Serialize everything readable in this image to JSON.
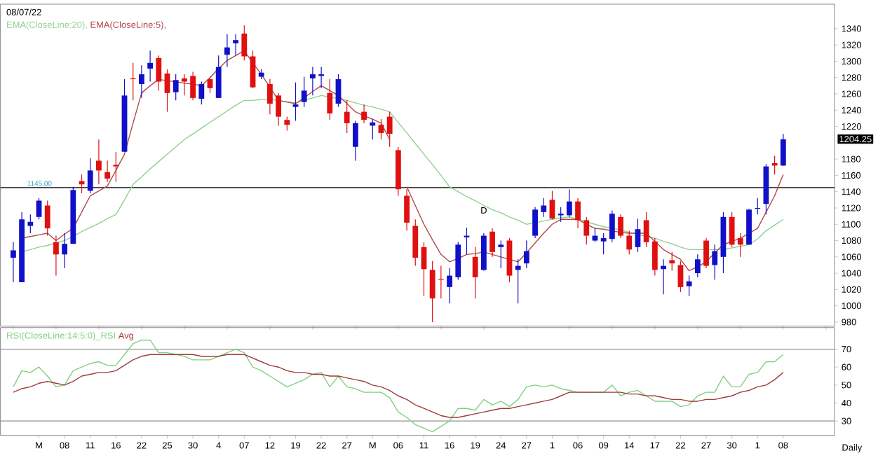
{
  "chart_data": [
    {
      "type": "candlestick",
      "title": "08/07/22",
      "categories": [
        null,
        null,
        null,
        null,
        null,
        null,
        null,
        null,
        null,
        null,
        null,
        null,
        null,
        null,
        null,
        null,
        null,
        null,
        null,
        null,
        null,
        null,
        null,
        null,
        null,
        null,
        null,
        null,
        null,
        null,
        null,
        null,
        null,
        null,
        null,
        null,
        null,
        null,
        null,
        null,
        null,
        null,
        null,
        null,
        null,
        null,
        null,
        null,
        null,
        null,
        null,
        null,
        null,
        null,
        null,
        null,
        null,
        null,
        null,
        null,
        null,
        null,
        null,
        null,
        null,
        null,
        null,
        null,
        null,
        null,
        null,
        null,
        null,
        null,
        null,
        null,
        null,
        null,
        null,
        null,
        null,
        null,
        null,
        null,
        null,
        null,
        null,
        null,
        null,
        null,
        null
      ],
      "ohlc": [
        [
          1059,
          1078,
          1029,
          1068
        ],
        [
          1029,
          1115,
          1029,
          1106
        ],
        [
          1098,
          1112,
          1089,
          1103
        ],
        [
          1109,
          1132,
          1106,
          1129
        ],
        [
          1123,
          1129,
          1086,
          1095
        ],
        [
          1078,
          1086,
          1037,
          1063
        ],
        [
          1063,
          1089,
          1046,
          1076
        ],
        [
          1076,
          1146,
          1076,
          1142
        ],
        [
          1153,
          1161,
          1138,
          1149
        ],
        [
          1141,
          1181,
          1138,
          1166
        ],
        [
          1178,
          1204,
          1149,
          1166
        ],
        [
          1164,
          1178,
          1152,
          1156
        ],
        [
          1173,
          1189,
          1152,
          1171
        ],
        [
          1189,
          1278,
          1189,
          1258
        ],
        [
          1279,
          1298,
          1252,
          1278
        ],
        [
          1272,
          1295,
          1255,
          1284
        ],
        [
          1291,
          1313,
          1275,
          1298
        ],
        [
          1304,
          1307,
          1264,
          1275
        ],
        [
          1285,
          1290,
          1238,
          1261
        ],
        [
          1262,
          1284,
          1252,
          1277
        ],
        [
          1279,
          1284,
          1258,
          1275
        ],
        [
          1282,
          1287,
          1252,
          1255
        ],
        [
          1254,
          1275,
          1247,
          1272
        ],
        [
          1278,
          1281,
          1261,
          1267
        ],
        [
          1255,
          1307,
          1255,
          1293
        ],
        [
          1308,
          1333,
          1293,
          1317
        ],
        [
          1322,
          1333,
          1307,
          1326
        ],
        [
          1334,
          1344,
          1301,
          1306
        ],
        [
          1306,
          1313,
          1267,
          1268
        ],
        [
          1281,
          1290,
          1278,
          1286
        ],
        [
          1272,
          1278,
          1235,
          1248
        ],
        [
          1258,
          1261,
          1221,
          1232
        ],
        [
          1228,
          1232,
          1215,
          1222
        ],
        [
          1244,
          1274,
          1227,
          1247
        ],
        [
          1250,
          1281,
          1244,
          1264
        ],
        [
          1279,
          1293,
          1258,
          1284
        ],
        [
          1282,
          1293,
          1267,
          1284
        ],
        [
          1261,
          1278,
          1228,
          1236
        ],
        [
          1248,
          1284,
          1244,
          1278
        ],
        [
          1238,
          1252,
          1212,
          1224
        ],
        [
          1195,
          1227,
          1178,
          1224
        ],
        [
          1238,
          1247,
          1224,
          1228
        ],
        [
          1221,
          1229,
          1204,
          1225
        ],
        [
          1222,
          1229,
          1204,
          1212
        ],
        [
          1232,
          1238,
          1195,
          1211
        ],
        [
          1191,
          1195,
          1135,
          1143
        ],
        [
          1135,
          1143,
          1092,
          1102
        ],
        [
          1098,
          1106,
          1049,
          1059
        ],
        [
          1072,
          1078,
          1012,
          1045
        ],
        [
          1044,
          1055,
          980,
          1009
        ],
        [
          1033,
          1049,
          1009,
          1032
        ],
        [
          1023,
          1046,
          1003,
          1037
        ],
        [
          1035,
          1078,
          1032,
          1075
        ],
        [
          1084,
          1096,
          1063,
          1086
        ],
        [
          1060,
          1072,
          1009,
          1035
        ],
        [
          1044,
          1089,
          1043,
          1086
        ],
        [
          1091,
          1095,
          1060,
          1066
        ],
        [
          1072,
          1080,
          1046,
          1075
        ],
        [
          1080,
          1083,
          1029,
          1037
        ],
        [
          1044,
          1057,
          1003,
          1049
        ],
        [
          1052,
          1080,
          1046,
          1067
        ],
        [
          1086,
          1121,
          1083,
          1118
        ],
        [
          1115,
          1132,
          1109,
          1123
        ],
        [
          1130,
          1141,
          1106,
          1107
        ],
        [
          1111,
          1121,
          1103,
          1113
        ],
        [
          1111,
          1143,
          1109,
          1128
        ],
        [
          1128,
          1132,
          1095,
          1105
        ],
        [
          1105,
          1109,
          1075,
          1086
        ],
        [
          1080,
          1096,
          1078,
          1086
        ],
        [
          1079,
          1089,
          1063,
          1083
        ],
        [
          1082,
          1117,
          1078,
          1113
        ],
        [
          1109,
          1112,
          1083,
          1086
        ],
        [
          1086,
          1092,
          1063,
          1069
        ],
        [
          1072,
          1107,
          1066,
          1094
        ],
        [
          1105,
          1115,
          1072,
          1078
        ],
        [
          1079,
          1083,
          1037,
          1044
        ],
        [
          1045,
          1057,
          1014,
          1049
        ],
        [
          1056,
          1066,
          1043,
          1052
        ],
        [
          1050,
          1055,
          1017,
          1023
        ],
        [
          1024,
          1037,
          1012,
          1030
        ],
        [
          1040,
          1063,
          1035,
          1057
        ],
        [
          1080,
          1083,
          1046,
          1049
        ],
        [
          1050,
          1075,
          1032,
          1067
        ],
        [
          1060,
          1115,
          1040,
          1109
        ],
        [
          1109,
          1115,
          1072,
          1075
        ],
        [
          1083,
          1089,
          1060,
          1075
        ],
        [
          1075,
          1119,
          1075,
          1118
        ],
        [
          1119,
          1132,
          1112,
          1120
        ],
        [
          1125,
          1174,
          1112,
          1171
        ],
        [
          1175,
          1184,
          1161,
          1172
        ],
        [
          1172,
          1211,
          1172,
          1204.25
        ]
      ],
      "colors": [
        "#1010c8",
        "#1010c8",
        "#1010c8",
        "#1010c8",
        "#e01010",
        "#e01010",
        "#1010c8",
        "#1010c8",
        "#e01010",
        "#1010c8",
        "#e01010",
        "#e01010",
        "#e01010",
        "#1010c8",
        "#e01010",
        "#1010c8",
        "#1010c8",
        "#e01010",
        "#e01010",
        "#1010c8",
        "#e01010",
        "#e01010",
        "#1010c8",
        "#e01010",
        "#1010c8",
        "#1010c8",
        "#1010c8",
        "#e01010",
        "#e01010",
        "#1010c8",
        "#e01010",
        "#e01010",
        "#e01010",
        "#1010c8",
        "#1010c8",
        "#1010c8",
        "#1010c8",
        "#e01010",
        "#1010c8",
        "#e01010",
        "#1010c8",
        "#e01010",
        "#1010c8",
        "#e01010",
        "#e01010",
        "#e01010",
        "#e01010",
        "#e01010",
        "#e01010",
        "#e01010",
        "#e01010",
        "#1010c8",
        "#1010c8",
        "#1010c8",
        "#e01010",
        "#1010c8",
        "#e01010",
        "#1010c8",
        "#e01010",
        "#1010c8",
        "#1010c8",
        "#1010c8",
        "#1010c8",
        "#e01010",
        "#1010c8",
        "#1010c8",
        "#e01010",
        "#e01010",
        "#1010c8",
        "#1010c8",
        "#1010c8",
        "#e01010",
        "#e01010",
        "#1010c8",
        "#e01010",
        "#e01010",
        "#1010c8",
        "#e01010",
        "#e01010",
        "#1010c8",
        "#1010c8",
        "#e01010",
        "#1010c8",
        "#1010c8",
        "#e01010",
        "#e01010",
        "#1010c8",
        "#1010c8",
        "#1010c8",
        "#e01010",
        "#1010c8"
      ],
      "series": [
        {
          "name": "EMA(CloseLine:20),",
          "type": "line",
          "color": "#8fd08f",
          "values": [
            null,
            1066,
            1069,
            1072,
            1074,
            1077,
            1080,
            1085,
            1091,
            1096,
            1101,
            1107,
            1112,
            1130,
            1149,
            1158,
            1168,
            1177,
            1186,
            1195,
            1204,
            1211,
            1218,
            1225,
            1232,
            1239,
            1246,
            1252,
            1252,
            1253,
            1253,
            1252,
            1250,
            1249,
            1252,
            1255,
            1258,
            1256,
            1254,
            1252,
            1249,
            1246,
            1244,
            1241,
            1238,
            1225,
            1212,
            1199,
            1186,
            1173,
            1160,
            1146,
            1140,
            1134,
            1129,
            1123,
            1118,
            1114,
            1109,
            1105,
            1100,
            1102,
            1104,
            1106,
            1108,
            1109,
            1106,
            1103,
            1100,
            1097,
            1095,
            1093,
            1090,
            1088,
            1085,
            1083,
            1079,
            1076,
            1072,
            1069,
            1069,
            1069,
            1069,
            1069,
            1071,
            1073,
            1075,
            1082,
            1092,
            1099,
            1106
          ]
        },
        {
          "name": "EMA(CloseLine:5),",
          "type": "line",
          "color": "#b04848",
          "values": [
            null,
            1083,
            1085,
            1087,
            1089,
            1080,
            1088,
            1095,
            1115,
            1135,
            1141,
            1147,
            1166,
            1186,
            1224,
            1261,
            1270,
            1278,
            1276,
            1275,
            1273,
            1272,
            1270,
            1280,
            1291,
            1301,
            1307,
            1313,
            1298,
            1284,
            1268,
            1252,
            1250,
            1248,
            1255,
            1263,
            1270,
            1264,
            1258,
            1248,
            1238,
            1233,
            1229,
            1224,
            1204,
            null,
            1146,
            1123,
            1100,
            1081,
            1063,
            1054,
            1058,
            1063,
            1064,
            1066,
            1063,
            1060,
            1057,
            1054,
            1065,
            1077,
            1089,
            1100,
            1106,
            1106,
            1106,
            1100,
            1095,
            1094,
            1092,
            1090,
            1089,
            1089,
            1089,
            1079,
            1069,
            1063,
            1057,
            1043,
            1048,
            1054,
            1065,
            1075,
            1079,
            1083,
            1089,
            1095,
            1115,
            1135,
            1161
          ]
        }
      ],
      "ylim": [
        975,
        1370
      ],
      "yticks": [
        980,
        1000,
        1020,
        1040,
        1060,
        1080,
        1100,
        1120,
        1140,
        1160,
        1180,
        1220,
        1240,
        1260,
        1280,
        1300,
        1320,
        1340
      ],
      "ref_lines": [
        {
          "axis": "y",
          "value": 1145,
          "label": "1145.00",
          "color": "#000000"
        }
      ],
      "annotations": [
        "1204.25",
        "D"
      ],
      "legend": "top left",
      "tick_labels": "y"
    },
    {
      "type": "line",
      "categories": [
        null,
        null,
        null,
        "M",
        null,
        null,
        "08",
        null,
        null,
        "11",
        null,
        null,
        "16",
        null,
        null,
        "22",
        null,
        null,
        "25",
        null,
        null,
        "30",
        null,
        null,
        "4",
        null,
        null,
        "07",
        null,
        null,
        "12",
        null,
        null,
        "19",
        null,
        null,
        "22",
        null,
        null,
        "27",
        null,
        null,
        "M",
        null,
        null,
        "06",
        null,
        null,
        "11",
        null,
        null,
        "16",
        null,
        null,
        "19",
        null,
        null,
        "24",
        null,
        null,
        "27",
        null,
        null,
        "1",
        null,
        null,
        "06",
        null,
        null,
        "09",
        null,
        null,
        "14",
        null,
        null,
        "17",
        null,
        null,
        "22",
        null,
        null,
        "27",
        null,
        null,
        "30",
        null,
        null,
        "1",
        null,
        null,
        "08"
      ],
      "series": [
        {
          "name": "RSI(CloseLine:14:5:0)_RSI",
          "color": "#80d080",
          "values": [
            49,
            58,
            57,
            60,
            55,
            49,
            50,
            58,
            60,
            62,
            63,
            61,
            61,
            67,
            73,
            75,
            75,
            68,
            68,
            67,
            66,
            64,
            64,
            64,
            66,
            68,
            70,
            68,
            60,
            58,
            55,
            52,
            49,
            51,
            53,
            56,
            57,
            49,
            55,
            49,
            48,
            46,
            46,
            46,
            43,
            35,
            32,
            28,
            26,
            24,
            27,
            30,
            37,
            37,
            36,
            42,
            39,
            41,
            38,
            42,
            49,
            50,
            49,
            50,
            48,
            47,
            46,
            46,
            46,
            46,
            50,
            44,
            46,
            47,
            44,
            41,
            41,
            41,
            38,
            39,
            44,
            46,
            46,
            55,
            49,
            49,
            56,
            57,
            63,
            63,
            67
          ]
        },
        {
          "name": "Avg",
          "color": "#a03c3c",
          "values": [
            46,
            48,
            49,
            51,
            52,
            51,
            50,
            52,
            55,
            56,
            57,
            57,
            58,
            61,
            64,
            66,
            67,
            67,
            67,
            67,
            67,
            67,
            66,
            66,
            66,
            67,
            67,
            67,
            65,
            63,
            61,
            60,
            58,
            57,
            57,
            56,
            56,
            55,
            55,
            54,
            53,
            52,
            50,
            49,
            47,
            44,
            42,
            39,
            37,
            35,
            33,
            32,
            32,
            33,
            34,
            35,
            36,
            37,
            37,
            38,
            39,
            40,
            41,
            42,
            44,
            46,
            46,
            46,
            46,
            46,
            46,
            46,
            45,
            45,
            44,
            44,
            43,
            42,
            42,
            41,
            41,
            42,
            42,
            43,
            44,
            46,
            47,
            49,
            50,
            53,
            57
          ]
        }
      ],
      "ylim": [
        22,
        82
      ],
      "yticks": [
        30,
        40,
        50,
        60,
        70
      ],
      "ref_lines": [
        {
          "axis": "y",
          "value": 70,
          "color": "#909090"
        },
        {
          "axis": "y",
          "value": 30,
          "color": "#909090"
        }
      ],
      "annotations": [
        "Daily"
      ],
      "legend": "top left"
    }
  ]
}
